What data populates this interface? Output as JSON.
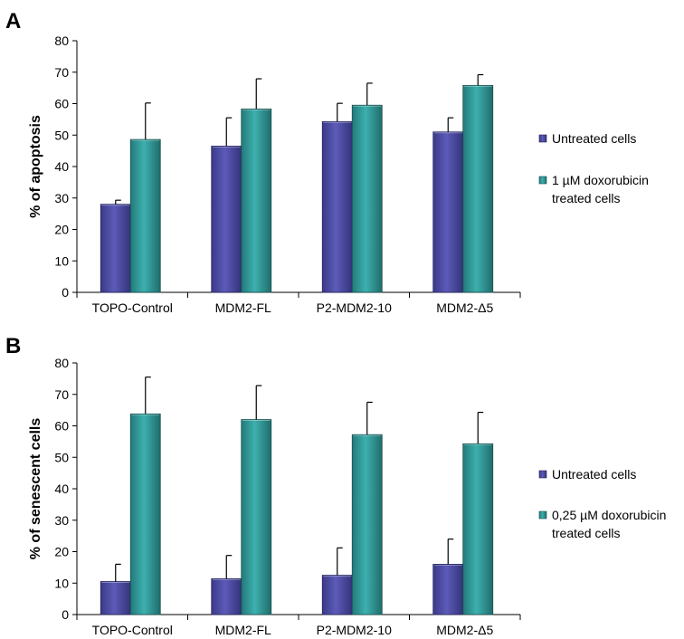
{
  "colors": {
    "untreated": "#4b4aa3",
    "untreated_edge": "#26255e",
    "treated": "#2f9b9b",
    "treated_edge": "#17504f",
    "axis": "#000000",
    "error_bar": "#000000"
  },
  "chart_data": [
    {
      "type": "bar",
      "panel_label": "A",
      "title": "",
      "xlabel": "",
      "ylabel": "% of apoptosis",
      "ylim": [
        0,
        80
      ],
      "yticks": [
        0,
        10,
        20,
        30,
        40,
        50,
        60,
        70,
        80
      ],
      "categories": [
        "TOPO-Control",
        "MDM2-FL",
        "P2-MDM2-10",
        "MDM2-Δ5"
      ],
      "legend_position": "right",
      "series": [
        {
          "key": "untreated",
          "name": "Untreated cells",
          "legend_lines": [
            "Untreated cells"
          ],
          "values": [
            28,
            46.5,
            54.3,
            51
          ],
          "errors": [
            1.3,
            9,
            5.8,
            4.5
          ]
        },
        {
          "key": "treated",
          "name": "1 µM doxorubicin treated cells",
          "legend_lines": [
            "1 µM doxorubicin",
            "treated cells"
          ],
          "values": [
            48.6,
            58.3,
            59.5,
            65.8
          ],
          "errors": [
            11.6,
            9.6,
            7,
            3.4
          ]
        }
      ]
    },
    {
      "type": "bar",
      "panel_label": "B",
      "title": "",
      "xlabel": "",
      "ylabel": "% of senescent cells",
      "ylim": [
        0,
        80
      ],
      "yticks": [
        0,
        10,
        20,
        30,
        40,
        50,
        60,
        70,
        80
      ],
      "categories": [
        "TOPO-Control",
        "MDM2-FL",
        "P2-MDM2-10",
        "MDM2-Δ5"
      ],
      "legend_position": "right",
      "series": [
        {
          "key": "untreated",
          "name": "Untreated cells",
          "legend_lines": [
            "Untreated cells"
          ],
          "values": [
            10.5,
            11.4,
            12.5,
            16
          ],
          "errors": [
            5.5,
            7.4,
            8.7,
            8
          ]
        },
        {
          "key": "treated",
          "name": "0,25 µM doxorubicin treated cells",
          "legend_lines": [
            "0,25 µM doxorubicin",
            "treated cells"
          ],
          "values": [
            63.8,
            62,
            57.2,
            54.3
          ],
          "errors": [
            11.7,
            10.8,
            10.3,
            10
          ]
        }
      ]
    }
  ]
}
